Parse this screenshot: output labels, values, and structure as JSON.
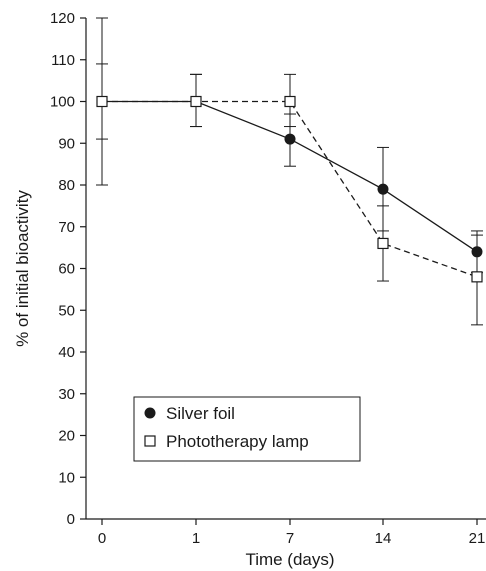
{
  "chart_data": {
    "type": "line",
    "title": "",
    "xlabel": "Time (days)",
    "ylabel": "% of initial bioactivity",
    "categories": [
      "0",
      "1",
      "7",
      "14",
      "21"
    ],
    "x_axis_spacing": "categorical (equal spacing)",
    "ylim": [
      0,
      120
    ],
    "yticks": [
      0,
      10,
      20,
      30,
      40,
      50,
      60,
      70,
      80,
      90,
      100,
      110,
      120
    ],
    "grid": false,
    "legend_position": "bottom-left",
    "series": [
      {
        "name": "Silver foil",
        "marker": "filled-circle",
        "line_style": "solid",
        "color": "#1a1a1a",
        "values": [
          100,
          100,
          91,
          79,
          64
        ],
        "error_low": [
          91,
          94,
          84.5,
          69,
          59
        ],
        "error_high": [
          109,
          106.5,
          97,
          89,
          69
        ]
      },
      {
        "name": "Phototherapy lamp",
        "marker": "open-square",
        "line_style": "dashed",
        "color": "#1a1a1a",
        "values": [
          100,
          100,
          100,
          66,
          58
        ],
        "error_low": [
          80,
          94,
          94,
          57,
          46.5
        ],
        "error_high": [
          120,
          106.5,
          106.5,
          75,
          68
        ]
      }
    ]
  }
}
